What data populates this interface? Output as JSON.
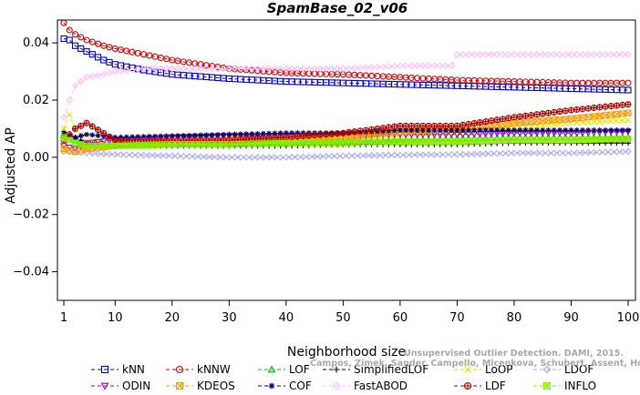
{
  "chart_data": {
    "type": "line",
    "title": "SpamBase_02_v06",
    "xlabel": "Neighborhood size",
    "ylabel": "Adjusted AP",
    "xlim": [
      1,
      100
    ],
    "ylim": [
      -0.05,
      0.048
    ],
    "x_ticks": [
      1,
      10,
      20,
      30,
      40,
      50,
      60,
      70,
      80,
      90,
      100
    ],
    "y_ticks": [
      -0.04,
      -0.02,
      0.0,
      0.02,
      0.04
    ],
    "y_tick_labels": [
      "−0.04",
      "−0.02",
      "0.00",
      "0.02",
      "0.04"
    ],
    "watermark": [
      "Unsupervised Outlier Detection. DAMI, 2015.",
      "Campos, Zimek, Sander, Campello, Micenkova, Schubert, Assent, Houle"
    ],
    "series": [
      {
        "name": "kNN",
        "color": "#0000cc",
        "marker": "square",
        "dash": "4,3",
        "points": [
          [
            1,
            0.0415
          ],
          [
            2,
            0.041
          ],
          [
            3,
            0.039
          ],
          [
            5,
            0.037
          ],
          [
            8,
            0.034
          ],
          [
            10,
            0.0325
          ],
          [
            15,
            0.0305
          ],
          [
            20,
            0.029
          ],
          [
            30,
            0.0275
          ],
          [
            40,
            0.0265
          ],
          [
            50,
            0.026
          ],
          [
            60,
            0.0255
          ],
          [
            70,
            0.025
          ],
          [
            80,
            0.0245
          ],
          [
            90,
            0.024
          ],
          [
            100,
            0.0235
          ]
        ]
      },
      {
        "name": "kNNW",
        "color": "#cc0000",
        "marker": "circle",
        "dash": "4,3",
        "points": [
          [
            1,
            0.047
          ],
          [
            2,
            0.0445
          ],
          [
            3,
            0.043
          ],
          [
            5,
            0.041
          ],
          [
            8,
            0.039
          ],
          [
            10,
            0.038
          ],
          [
            15,
            0.036
          ],
          [
            20,
            0.034
          ],
          [
            30,
            0.031
          ],
          [
            40,
            0.0295
          ],
          [
            50,
            0.029
          ],
          [
            60,
            0.028
          ],
          [
            70,
            0.027
          ],
          [
            80,
            0.0265
          ],
          [
            90,
            0.026
          ],
          [
            100,
            0.026
          ]
        ]
      },
      {
        "name": "LOF",
        "color": "#00bb00",
        "marker": "triangle",
        "dash": "4,3",
        "points": [
          [
            1,
            0.008
          ],
          [
            3,
            0.006
          ],
          [
            5,
            0.005
          ],
          [
            10,
            0.004
          ],
          [
            20,
            0.0045
          ],
          [
            30,
            0.005
          ],
          [
            40,
            0.005
          ],
          [
            50,
            0.0055
          ],
          [
            60,
            0.006
          ],
          [
            70,
            0.0065
          ],
          [
            80,
            0.007
          ],
          [
            90,
            0.007
          ],
          [
            100,
            0.007
          ]
        ]
      },
      {
        "name": "SimplifiedLOF",
        "color": "#000000",
        "marker": "plus",
        "dash": "4,3",
        "points": [
          [
            1,
            0.009
          ],
          [
            3,
            0.007
          ],
          [
            5,
            0.005
          ],
          [
            10,
            0.004
          ],
          [
            20,
            0.004
          ],
          [
            30,
            0.004
          ],
          [
            40,
            0.004
          ],
          [
            50,
            0.0045
          ],
          [
            60,
            0.0045
          ],
          [
            70,
            0.0045
          ],
          [
            80,
            0.005
          ],
          [
            90,
            0.005
          ],
          [
            100,
            0.005
          ]
        ]
      },
      {
        "name": "LoOP",
        "color": "#e6e600",
        "marker": "x",
        "dash": "4,3",
        "points": [
          [
            1,
            0.01
          ],
          [
            2,
            0.015
          ],
          [
            3,
            0.01
          ],
          [
            5,
            0.006
          ],
          [
            10,
            0.005
          ],
          [
            20,
            0.0045
          ],
          [
            30,
            0.005
          ],
          [
            40,
            0.006
          ],
          [
            50,
            0.007
          ],
          [
            60,
            0.008
          ],
          [
            70,
            0.009
          ],
          [
            80,
            0.0105
          ],
          [
            90,
            0.012
          ],
          [
            100,
            0.013
          ]
        ]
      },
      {
        "name": "LDOF",
        "color": "#aaaaee",
        "marker": "diamond",
        "dash": "4,3",
        "points": [
          [
            1,
            0.002
          ],
          [
            5,
            0.0015
          ],
          [
            10,
            0.001
          ],
          [
            20,
            0.0005
          ],
          [
            30,
            0.0
          ],
          [
            40,
            0.0
          ],
          [
            50,
            0.0005
          ],
          [
            60,
            0.0008
          ],
          [
            70,
            0.001
          ],
          [
            80,
            0.0015
          ],
          [
            90,
            0.0015
          ],
          [
            100,
            0.002
          ]
        ]
      },
      {
        "name": "ODIN",
        "color": "#9900cc",
        "marker": "triangle-down",
        "dash": "4,3",
        "points": [
          [
            1,
            0.004
          ],
          [
            3,
            0.003
          ],
          [
            5,
            0.005
          ],
          [
            10,
            0.006
          ],
          [
            20,
            0.007
          ],
          [
            30,
            0.0075
          ],
          [
            40,
            0.0075
          ],
          [
            50,
            0.008
          ],
          [
            60,
            0.008
          ],
          [
            70,
            0.008
          ],
          [
            80,
            0.0085
          ],
          [
            90,
            0.0085
          ],
          [
            100,
            0.009
          ]
        ]
      },
      {
        "name": "KDEOS",
        "color": "#ff9900",
        "marker": "square-x",
        "dash": "4,3",
        "points": [
          [
            1,
            0.003
          ],
          [
            3,
            0.002
          ],
          [
            5,
            0.003
          ],
          [
            10,
            0.004
          ],
          [
            20,
            0.005
          ],
          [
            30,
            0.006
          ],
          [
            40,
            0.0065
          ],
          [
            50,
            0.007
          ],
          [
            60,
            0.009
          ],
          [
            70,
            0.01
          ],
          [
            80,
            0.012
          ],
          [
            90,
            0.0135
          ],
          [
            100,
            0.0155
          ]
        ]
      },
      {
        "name": "COF",
        "color": "#000066",
        "marker": "star",
        "dash": "4,3",
        "points": [
          [
            1,
            0.008
          ],
          [
            3,
            0.007
          ],
          [
            5,
            0.008
          ],
          [
            10,
            0.007
          ],
          [
            20,
            0.0075
          ],
          [
            30,
            0.008
          ],
          [
            40,
            0.0085
          ],
          [
            50,
            0.0085
          ],
          [
            60,
            0.0095
          ],
          [
            70,
            0.0095
          ],
          [
            80,
            0.0095
          ],
          [
            90,
            0.0095
          ],
          [
            100,
            0.0095
          ]
        ]
      },
      {
        "name": "FastABOD",
        "color": "#ffbbff",
        "marker": "diamond",
        "dash": "4,3",
        "points": [
          [
            1,
            0.014
          ],
          [
            2,
            0.02
          ],
          [
            3,
            0.025
          ],
          [
            5,
            0.028
          ],
          [
            8,
            0.029
          ],
          [
            10,
            0.03
          ],
          [
            15,
            0.031
          ],
          [
            20,
            0.031
          ],
          [
            30,
            0.031
          ],
          [
            40,
            0.031
          ],
          [
            50,
            0.031
          ],
          [
            60,
            0.032
          ],
          [
            69,
            0.032
          ],
          [
            70,
            0.036
          ],
          [
            80,
            0.036
          ],
          [
            90,
            0.036
          ],
          [
            100,
            0.036
          ]
        ]
      },
      {
        "name": "LDF",
        "color": "#aa0000",
        "marker": "circle-plus",
        "dash": "4,3",
        "points": [
          [
            1,
            0.006
          ],
          [
            3,
            0.01
          ],
          [
            5,
            0.012
          ],
          [
            10,
            0.006
          ],
          [
            20,
            0.006
          ],
          [
            30,
            0.006
          ],
          [
            40,
            0.007
          ],
          [
            50,
            0.0085
          ],
          [
            60,
            0.011
          ],
          [
            70,
            0.011
          ],
          [
            80,
            0.014
          ],
          [
            90,
            0.0165
          ],
          [
            100,
            0.0185
          ]
        ]
      },
      {
        "name": "INFLO",
        "color": "#88ee00",
        "marker": "square-star",
        "dash": "4,3",
        "points": [
          [
            1,
            0.007
          ],
          [
            3,
            0.005
          ],
          [
            5,
            0.004
          ],
          [
            10,
            0.004
          ],
          [
            20,
            0.0045
          ],
          [
            30,
            0.0045
          ],
          [
            40,
            0.005
          ],
          [
            50,
            0.005
          ],
          [
            60,
            0.0055
          ],
          [
            70,
            0.0055
          ],
          [
            80,
            0.006
          ],
          [
            90,
            0.006
          ],
          [
            100,
            0.0065
          ]
        ]
      }
    ]
  }
}
